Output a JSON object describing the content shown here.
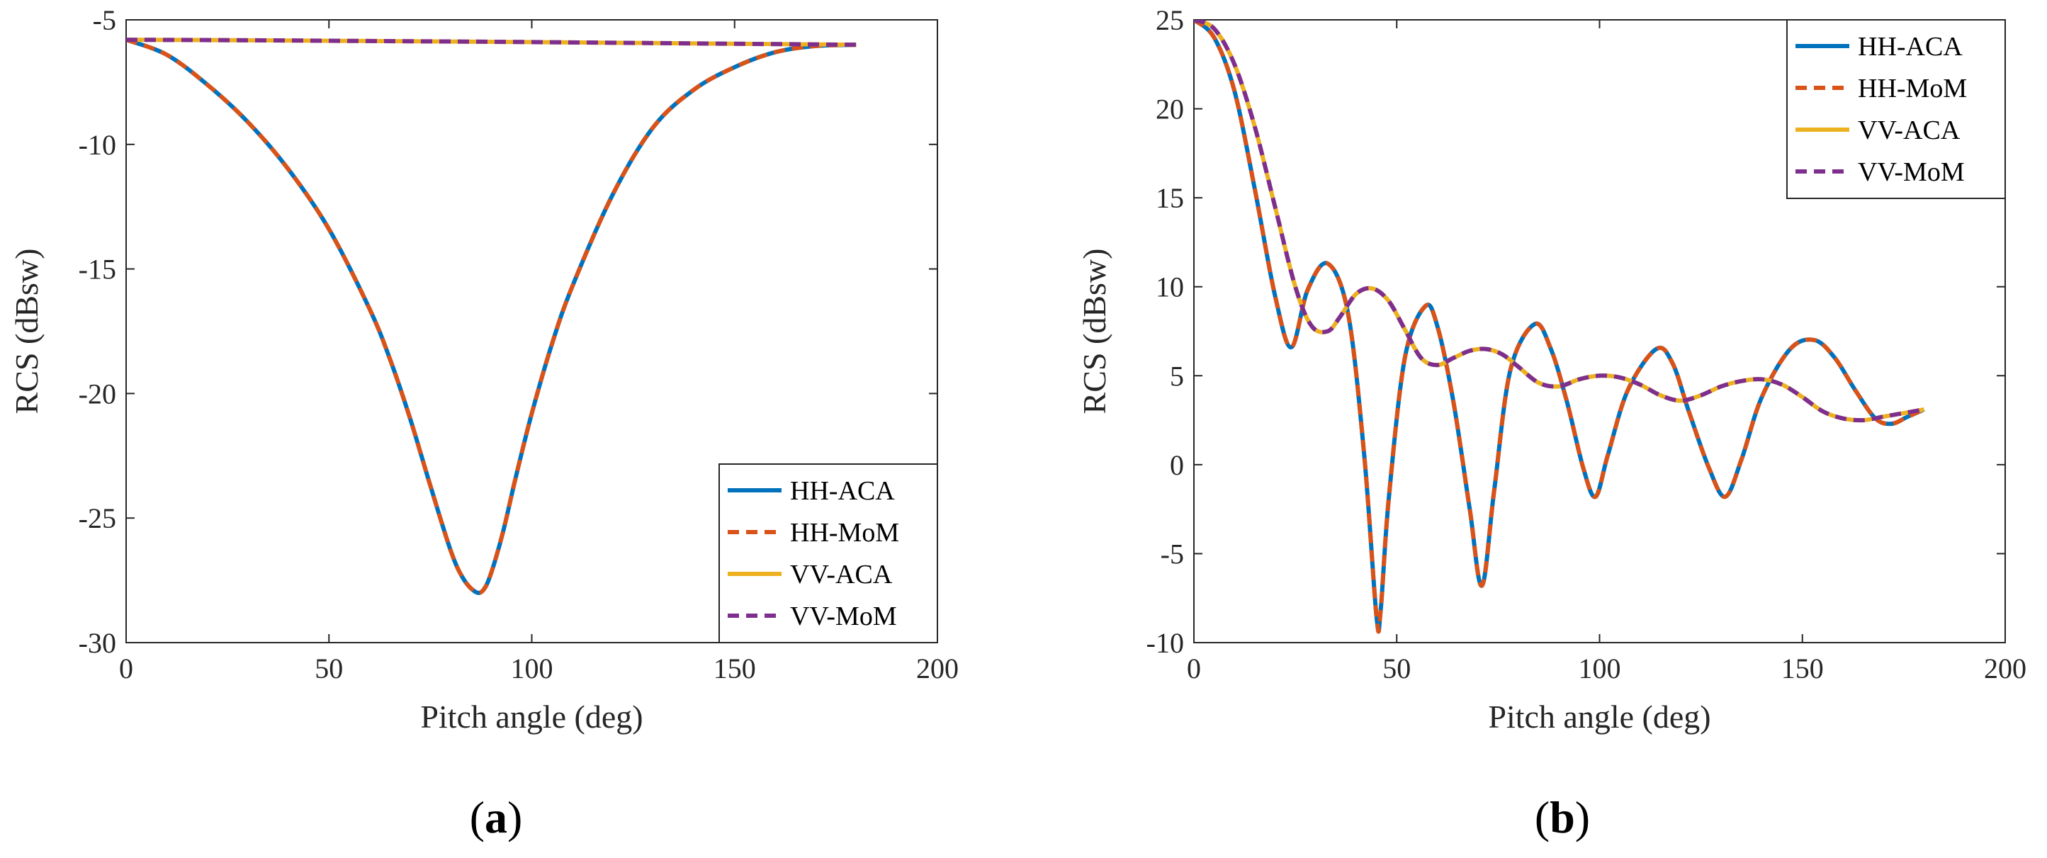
{
  "chart_data": [
    {
      "type": "line",
      "panel_label": "a",
      "xlabel": "Pitch angle (deg)",
      "ylabel": "RCS (dBsw)",
      "xlim": [
        0,
        200
      ],
      "ylim": [
        -30,
        -5
      ],
      "xticks": [
        0,
        50,
        100,
        150,
        200
      ],
      "yticks": [
        -30,
        -25,
        -20,
        -15,
        -10,
        -5
      ],
      "legend_position": "bottom-right",
      "series": [
        {
          "name": "HH-ACA",
          "color": "#0072BD",
          "style": "solid",
          "x": [
            0,
            10,
            20,
            30,
            40,
            50,
            60,
            65,
            70,
            75,
            80,
            83,
            86,
            88,
            90,
            93,
            96,
            100,
            105,
            110,
            120,
            130,
            140,
            150,
            160,
            170,
            180
          ],
          "y": [
            -5.8,
            -6.4,
            -7.6,
            -9.1,
            -11.0,
            -13.4,
            -16.6,
            -18.6,
            -21.0,
            -23.7,
            -26.3,
            -27.4,
            -27.95,
            -27.9,
            -27.2,
            -25.5,
            -23.4,
            -20.8,
            -18.0,
            -15.7,
            -12.0,
            -9.3,
            -7.8,
            -6.9,
            -6.3,
            -6.05,
            -6.0
          ]
        },
        {
          "name": "HH-MoM",
          "color": "#D95319",
          "style": "dashed",
          "x": [
            0,
            10,
            20,
            30,
            40,
            50,
            60,
            65,
            70,
            75,
            80,
            83,
            86,
            88,
            90,
            93,
            96,
            100,
            105,
            110,
            120,
            130,
            140,
            150,
            160,
            170,
            180
          ],
          "y": [
            -5.8,
            -6.4,
            -7.6,
            -9.1,
            -11.0,
            -13.4,
            -16.6,
            -18.6,
            -21.0,
            -23.7,
            -26.3,
            -27.4,
            -27.95,
            -27.9,
            -27.2,
            -25.5,
            -23.4,
            -20.8,
            -18.0,
            -15.7,
            -12.0,
            -9.3,
            -7.8,
            -6.9,
            -6.3,
            -6.05,
            -6.0
          ]
        },
        {
          "name": "VV-ACA",
          "color": "#EDB120",
          "style": "solid",
          "x": [
            0,
            30,
            60,
            90,
            120,
            150,
            180
          ],
          "y": [
            -5.8,
            -5.82,
            -5.85,
            -5.88,
            -5.92,
            -5.96,
            -6.0
          ]
        },
        {
          "name": "VV-MoM",
          "color": "#7E2F8E",
          "style": "dashed",
          "x": [
            0,
            30,
            60,
            90,
            120,
            150,
            180
          ],
          "y": [
            -5.8,
            -5.82,
            -5.85,
            -5.88,
            -5.92,
            -5.96,
            -6.0
          ]
        }
      ]
    },
    {
      "type": "line",
      "panel_label": "b",
      "xlabel": "Pitch angle (deg)",
      "ylabel": "RCS (dBsw)",
      "xlim": [
        0,
        200
      ],
      "ylim": [
        -10,
        25
      ],
      "xticks": [
        0,
        50,
        100,
        150,
        200
      ],
      "yticks": [
        -10,
        -5,
        0,
        5,
        10,
        15,
        20,
        25
      ],
      "legend_position": "top-right",
      "series": [
        {
          "name": "HH-ACA",
          "color": "#0072BD",
          "style": "solid",
          "x": [
            0,
            5,
            10,
            15,
            20,
            24,
            28,
            33,
            38,
            42,
            45,
            46,
            48,
            52,
            57,
            60,
            64,
            68,
            71,
            74,
            78,
            84,
            88,
            92,
            96,
            99,
            102,
            107,
            114,
            118,
            122,
            127,
            131,
            135,
            140,
            147,
            153,
            158,
            163,
            168,
            172,
            176,
            180
          ],
          "y": [
            25,
            24,
            21,
            15.5,
            9.5,
            6.6,
            9.8,
            11.3,
            8.5,
            0.5,
            -8.5,
            -8.3,
            -2.0,
            6.0,
            8.9,
            7.8,
            3.5,
            -2.5,
            -6.8,
            -1.5,
            5.3,
            7.9,
            6.5,
            3.5,
            -0.2,
            -1.8,
            0.5,
            4.2,
            6.5,
            5.7,
            3.0,
            -0.2,
            -1.8,
            0.3,
            3.8,
            6.5,
            7.0,
            6.0,
            4.2,
            2.6,
            2.3,
            2.7,
            3.1
          ]
        },
        {
          "name": "HH-MoM",
          "color": "#D95319",
          "style": "dashed",
          "x": [
            0,
            5,
            10,
            15,
            20,
            24,
            28,
            33,
            38,
            42,
            45,
            46,
            48,
            52,
            57,
            60,
            64,
            68,
            71,
            74,
            78,
            84,
            88,
            92,
            96,
            99,
            102,
            107,
            114,
            118,
            122,
            127,
            131,
            135,
            140,
            147,
            153,
            158,
            163,
            168,
            172,
            176,
            180
          ],
          "y": [
            25,
            24,
            21,
            15.5,
            9.5,
            6.6,
            9.8,
            11.3,
            8.5,
            0.5,
            -8.5,
            -8.3,
            -2.0,
            6.0,
            8.9,
            7.8,
            3.5,
            -2.5,
            -6.8,
            -1.5,
            5.3,
            7.9,
            6.5,
            3.5,
            -0.2,
            -1.8,
            0.5,
            4.2,
            6.5,
            5.7,
            3.0,
            -0.2,
            -1.8,
            0.3,
            3.8,
            6.5,
            7.0,
            6.0,
            4.2,
            2.6,
            2.3,
            2.7,
            3.1
          ]
        },
        {
          "name": "VV-ACA",
          "color": "#EDB120",
          "style": "solid",
          "x": [
            0,
            5,
            10,
            15,
            20,
            25,
            29,
            33,
            36,
            40,
            44,
            48,
            52,
            56,
            60,
            64,
            68,
            72,
            76,
            80,
            85,
            90,
            95,
            100,
            105,
            110,
            115,
            120,
            125,
            130,
            135,
            140,
            145,
            150,
            155,
            160,
            165,
            170,
            175,
            180
          ],
          "y": [
            25,
            24.5,
            22.5,
            19,
            14.5,
            10,
            7.8,
            7.5,
            8.3,
            9.6,
            9.9,
            9.2,
            7.6,
            6.0,
            5.6,
            6.0,
            6.4,
            6.5,
            6.2,
            5.5,
            4.6,
            4.4,
            4.8,
            5.0,
            4.9,
            4.5,
            3.9,
            3.6,
            3.9,
            4.4,
            4.7,
            4.8,
            4.5,
            3.8,
            3.0,
            2.6,
            2.5,
            2.7,
            2.9,
            3.1
          ]
        },
        {
          "name": "VV-MoM",
          "color": "#7E2F8E",
          "style": "dashed",
          "x": [
            0,
            5,
            10,
            15,
            20,
            25,
            29,
            33,
            36,
            40,
            44,
            48,
            52,
            56,
            60,
            64,
            68,
            72,
            76,
            80,
            85,
            90,
            95,
            100,
            105,
            110,
            115,
            120,
            125,
            130,
            135,
            140,
            145,
            150,
            155,
            160,
            165,
            170,
            175,
            180
          ],
          "y": [
            25,
            24.5,
            22.5,
            19,
            14.5,
            10,
            7.8,
            7.5,
            8.3,
            9.6,
            9.9,
            9.2,
            7.6,
            6.0,
            5.6,
            6.0,
            6.4,
            6.5,
            6.2,
            5.5,
            4.6,
            4.4,
            4.8,
            5.0,
            4.9,
            4.5,
            3.9,
            3.6,
            3.9,
            4.4,
            4.7,
            4.8,
            4.5,
            3.8,
            3.0,
            2.6,
            2.5,
            2.7,
            2.9,
            3.1
          ]
        }
      ]
    }
  ]
}
